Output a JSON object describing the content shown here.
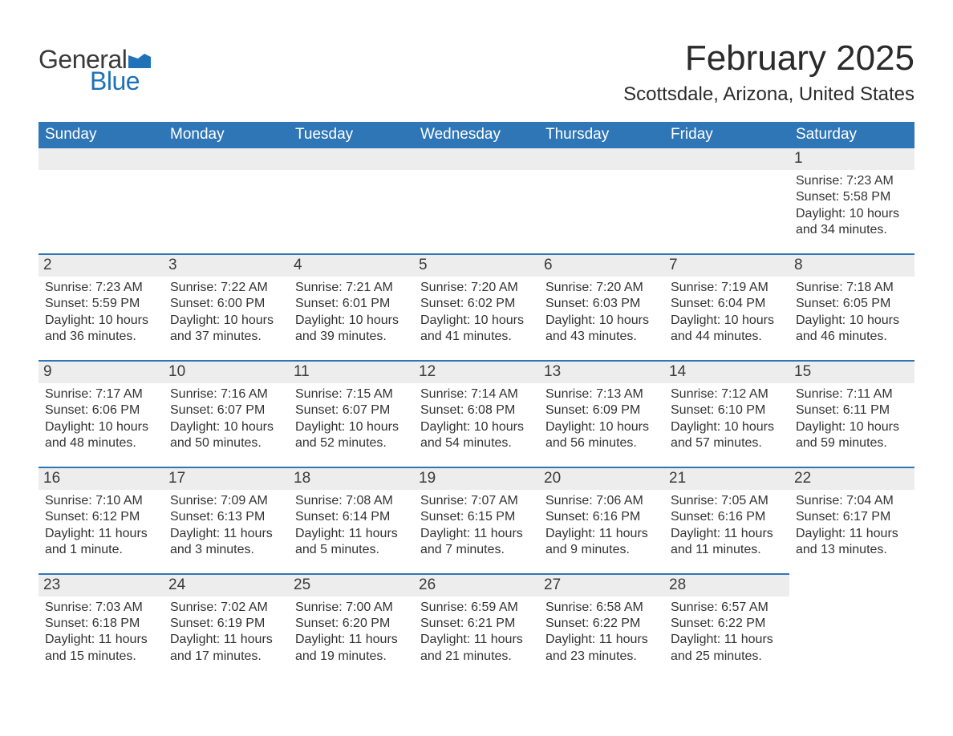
{
  "brand": {
    "word1": "General",
    "word2": "Blue",
    "word1_color": "#3a3a3a",
    "word2_color": "#1f72b8",
    "flag_color": "#1f72b8"
  },
  "title": "February 2025",
  "location": "Scottsdale, Arizona, United States",
  "colors": {
    "header_bg": "#2f76b6",
    "header_text": "#ffffff",
    "day_header_bg": "#ededed",
    "day_border": "#2f76b6",
    "body_text": "#333333",
    "background": "#ffffff"
  },
  "fonts": {
    "title_size_pt": 33,
    "location_size_pt": 18,
    "weekday_size_pt": 14,
    "day_number_size_pt": 14,
    "body_size_pt": 12
  },
  "weekdays": [
    "Sunday",
    "Monday",
    "Tuesday",
    "Wednesday",
    "Thursday",
    "Friday",
    "Saturday"
  ],
  "weeks": [
    [
      null,
      null,
      null,
      null,
      null,
      null,
      {
        "n": "1",
        "sunrise": "Sunrise: 7:23 AM",
        "sunset": "Sunset: 5:58 PM",
        "daylight": "Daylight: 10 hours and 34 minutes."
      }
    ],
    [
      {
        "n": "2",
        "sunrise": "Sunrise: 7:23 AM",
        "sunset": "Sunset: 5:59 PM",
        "daylight": "Daylight: 10 hours and 36 minutes."
      },
      {
        "n": "3",
        "sunrise": "Sunrise: 7:22 AM",
        "sunset": "Sunset: 6:00 PM",
        "daylight": "Daylight: 10 hours and 37 minutes."
      },
      {
        "n": "4",
        "sunrise": "Sunrise: 7:21 AM",
        "sunset": "Sunset: 6:01 PM",
        "daylight": "Daylight: 10 hours and 39 minutes."
      },
      {
        "n": "5",
        "sunrise": "Sunrise: 7:20 AM",
        "sunset": "Sunset: 6:02 PM",
        "daylight": "Daylight: 10 hours and 41 minutes."
      },
      {
        "n": "6",
        "sunrise": "Sunrise: 7:20 AM",
        "sunset": "Sunset: 6:03 PM",
        "daylight": "Daylight: 10 hours and 43 minutes."
      },
      {
        "n": "7",
        "sunrise": "Sunrise: 7:19 AM",
        "sunset": "Sunset: 6:04 PM",
        "daylight": "Daylight: 10 hours and 44 minutes."
      },
      {
        "n": "8",
        "sunrise": "Sunrise: 7:18 AM",
        "sunset": "Sunset: 6:05 PM",
        "daylight": "Daylight: 10 hours and 46 minutes."
      }
    ],
    [
      {
        "n": "9",
        "sunrise": "Sunrise: 7:17 AM",
        "sunset": "Sunset: 6:06 PM",
        "daylight": "Daylight: 10 hours and 48 minutes."
      },
      {
        "n": "10",
        "sunrise": "Sunrise: 7:16 AM",
        "sunset": "Sunset: 6:07 PM",
        "daylight": "Daylight: 10 hours and 50 minutes."
      },
      {
        "n": "11",
        "sunrise": "Sunrise: 7:15 AM",
        "sunset": "Sunset: 6:07 PM",
        "daylight": "Daylight: 10 hours and 52 minutes."
      },
      {
        "n": "12",
        "sunrise": "Sunrise: 7:14 AM",
        "sunset": "Sunset: 6:08 PM",
        "daylight": "Daylight: 10 hours and 54 minutes."
      },
      {
        "n": "13",
        "sunrise": "Sunrise: 7:13 AM",
        "sunset": "Sunset: 6:09 PM",
        "daylight": "Daylight: 10 hours and 56 minutes."
      },
      {
        "n": "14",
        "sunrise": "Sunrise: 7:12 AM",
        "sunset": "Sunset: 6:10 PM",
        "daylight": "Daylight: 10 hours and 57 minutes."
      },
      {
        "n": "15",
        "sunrise": "Sunrise: 7:11 AM",
        "sunset": "Sunset: 6:11 PM",
        "daylight": "Daylight: 10 hours and 59 minutes."
      }
    ],
    [
      {
        "n": "16",
        "sunrise": "Sunrise: 7:10 AM",
        "sunset": "Sunset: 6:12 PM",
        "daylight": "Daylight: 11 hours and 1 minute."
      },
      {
        "n": "17",
        "sunrise": "Sunrise: 7:09 AM",
        "sunset": "Sunset: 6:13 PM",
        "daylight": "Daylight: 11 hours and 3 minutes."
      },
      {
        "n": "18",
        "sunrise": "Sunrise: 7:08 AM",
        "sunset": "Sunset: 6:14 PM",
        "daylight": "Daylight: 11 hours and 5 minutes."
      },
      {
        "n": "19",
        "sunrise": "Sunrise: 7:07 AM",
        "sunset": "Sunset: 6:15 PM",
        "daylight": "Daylight: 11 hours and 7 minutes."
      },
      {
        "n": "20",
        "sunrise": "Sunrise: 7:06 AM",
        "sunset": "Sunset: 6:16 PM",
        "daylight": "Daylight: 11 hours and 9 minutes."
      },
      {
        "n": "21",
        "sunrise": "Sunrise: 7:05 AM",
        "sunset": "Sunset: 6:16 PM",
        "daylight": "Daylight: 11 hours and 11 minutes."
      },
      {
        "n": "22",
        "sunrise": "Sunrise: 7:04 AM",
        "sunset": "Sunset: 6:17 PM",
        "daylight": "Daylight: 11 hours and 13 minutes."
      }
    ],
    [
      {
        "n": "23",
        "sunrise": "Sunrise: 7:03 AM",
        "sunset": "Sunset: 6:18 PM",
        "daylight": "Daylight: 11 hours and 15 minutes."
      },
      {
        "n": "24",
        "sunrise": "Sunrise: 7:02 AM",
        "sunset": "Sunset: 6:19 PM",
        "daylight": "Daylight: 11 hours and 17 minutes."
      },
      {
        "n": "25",
        "sunrise": "Sunrise: 7:00 AM",
        "sunset": "Sunset: 6:20 PM",
        "daylight": "Daylight: 11 hours and 19 minutes."
      },
      {
        "n": "26",
        "sunrise": "Sunrise: 6:59 AM",
        "sunset": "Sunset: 6:21 PM",
        "daylight": "Daylight: 11 hours and 21 minutes."
      },
      {
        "n": "27",
        "sunrise": "Sunrise: 6:58 AM",
        "sunset": "Sunset: 6:22 PM",
        "daylight": "Daylight: 11 hours and 23 minutes."
      },
      {
        "n": "28",
        "sunrise": "Sunrise: 6:57 AM",
        "sunset": "Sunset: 6:22 PM",
        "daylight": "Daylight: 11 hours and 25 minutes."
      },
      null
    ]
  ]
}
